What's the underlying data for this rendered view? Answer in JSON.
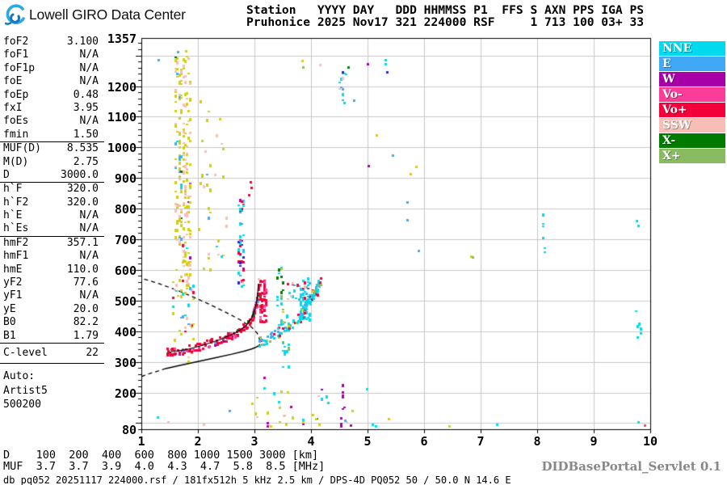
{
  "header": {
    "logo_text": "Lowell GIRO Data Center",
    "station_block": [
      "Station   YYYY DAY   DDD HHMMSS P1  FFS S AXN PPS IGA PS",
      "Pruhonice 2025 Nov17 321 224000 RSF     1 713 100 03+ 33"
    ]
  },
  "params": {
    "groups": [
      {
        "rows": [
          [
            "foF2",
            "3.100"
          ],
          [
            "foF1",
            "N/A"
          ],
          [
            "foF1p",
            "N/A"
          ],
          [
            "foE",
            "N/A"
          ],
          [
            "foEp",
            "0.48"
          ],
          [
            "fxI",
            "3.95"
          ],
          [
            "foEs",
            "N/A"
          ],
          [
            "fmin",
            "1.50"
          ]
        ]
      },
      {
        "rows": [
          [
            "MUF(D)",
            "8.535"
          ],
          [
            "M(D)",
            "2.75"
          ],
          [
            "D",
            "3000.0"
          ]
        ]
      },
      {
        "rows": [
          [
            "h`F",
            "320.0"
          ],
          [
            "h`F2",
            "320.0"
          ],
          [
            "h`E",
            "N/A"
          ],
          [
            "h`Es",
            "N/A"
          ]
        ]
      },
      {
        "rows": [
          [
            "hmF2",
            "357.1"
          ],
          [
            "hmF1",
            "N/A"
          ],
          [
            "hmE",
            "110.0"
          ],
          [
            "yF2",
            "77.6"
          ],
          [
            "yF1",
            "N/A"
          ],
          [
            "yE",
            "20.0"
          ],
          [
            "B0",
            "82.2"
          ],
          [
            "B1",
            "1.79"
          ]
        ]
      },
      {
        "rows": [
          [
            "C-level",
            "22"
          ]
        ],
        "clevel": true
      }
    ],
    "auto_block": [
      "Auto:",
      "Artist5",
      "500200"
    ]
  },
  "legend": [
    {
      "label": "NNE",
      "color": "#00d9ee"
    },
    {
      "label": "E",
      "color": "#41a8f6"
    },
    {
      "label": "W",
      "color": "#a800a8"
    },
    {
      "label": "Vo-",
      "color": "#fb3d99"
    },
    {
      "label": "Vo+",
      "color": "#f3003a"
    },
    {
      "label": "SSW",
      "color": "#f6beb4"
    },
    {
      "label": "X-",
      "color": "#007b00"
    },
    {
      "label": "X+",
      "color": "#89bb60"
    }
  ],
  "footer": {
    "dmuf": [
      "D    100  200  400  600  800 1000 1500 3000 [km]",
      "MUF  3.7  3.7  3.9  4.0  4.3  4.7  5.8  8.5 [MHz]"
    ],
    "status": "db pq052 20251117 224000.rsf / 181fx512h 5 kHz 2.5 km / DPS-4D PQ052 50 / 50.0 N 14.6 E",
    "servlet": "DIDBasePortal_Servlet 0.1"
  },
  "chart_data": {
    "type": "scatter",
    "title": "Pruhonice ionogram 2025 Nov17 321 224000",
    "x_axis": {
      "unit": "MHz",
      "min": 1,
      "max": 10,
      "ticks": [
        1,
        2,
        3,
        4,
        5,
        6,
        7,
        8,
        9,
        10
      ]
    },
    "y_axis": {
      "unit": "km",
      "min": 80,
      "max": 1357,
      "tick_labels": [
        1357,
        1200,
        1100,
        1000,
        900,
        800,
        700,
        600,
        500,
        400,
        300,
        200,
        80
      ],
      "grid_step": 100
    },
    "grid_color": "#c8c8c8",
    "palette": {
      "NNE": "#00d9ee",
      "E": "#41a8f6",
      "W": "#a800a8",
      "Vo-": "#fb3d99",
      "Vo+": "#f3003a",
      "SSW": "#f6beb4",
      "X-": "#007b00",
      "X+": "#89bb60",
      "yellow": "#cfcf10",
      "dkblue": "#2626cc"
    },
    "traces": [
      {
        "name": "O-mode F trace",
        "mix": {
          "Vo+": 0.72,
          "Vo-": 0.14,
          "W": 0.04,
          "X-": 0.05,
          "E": 0.05
        },
        "thickness_km": 26,
        "n": 170,
        "seed": 11,
        "points": [
          [
            1.45,
            332
          ],
          [
            1.6,
            334
          ],
          [
            1.8,
            340
          ],
          [
            2.0,
            349
          ],
          [
            2.2,
            360
          ],
          [
            2.4,
            372
          ],
          [
            2.6,
            388
          ],
          [
            2.75,
            403
          ],
          [
            2.85,
            418
          ],
          [
            2.95,
            443
          ],
          [
            3.0,
            466
          ],
          [
            3.04,
            495
          ],
          [
            3.07,
            530
          ],
          [
            3.08,
            555
          ]
        ]
      },
      {
        "name": "X-mode / oblique trace",
        "mix": {
          "NNE": 0.62,
          "E": 0.12,
          "Vo+": 0.12,
          "X+": 0.08,
          "yellow": 0.06
        },
        "thickness_km": 34,
        "n": 130,
        "seed": 22,
        "points": [
          [
            3.08,
            365
          ],
          [
            3.25,
            380
          ],
          [
            3.45,
            400
          ],
          [
            3.65,
            425
          ],
          [
            3.8,
            452
          ],
          [
            3.9,
            478
          ],
          [
            4.0,
            510
          ],
          [
            4.1,
            540
          ],
          [
            4.17,
            560
          ]
        ]
      }
    ],
    "noise_bands": [
      {
        "f0": 1.6,
        "f1": 1.7,
        "km0": 690,
        "km1": 1295,
        "n": 95,
        "seed": 1,
        "colors": {
          "yellow": 0.5,
          "SSW": 0.2,
          "E": 0.18,
          "NNE": 0.06,
          "X-": 0.06
        }
      },
      {
        "f0": 1.74,
        "f1": 1.85,
        "km0": 540,
        "km1": 1305,
        "n": 120,
        "seed": 2,
        "colors": {
          "yellow": 0.58,
          "SSW": 0.36,
          "W": 0.06
        }
      },
      {
        "f0": 1.55,
        "f1": 1.92,
        "km0": 300,
        "km1": 690,
        "n": 48,
        "seed": 3,
        "colors": {
          "yellow": 0.45,
          "SSW": 0.3,
          "NNE": 0.1,
          "Vo+": 0.1,
          "E": 0.05
        }
      },
      {
        "f0": 2.02,
        "f1": 2.22,
        "km0": 600,
        "km1": 1160,
        "n": 22,
        "seed": 4,
        "colors": {
          "yellow": 0.55,
          "SSW": 0.27,
          "E": 0.18
        }
      },
      {
        "f0": 2.3,
        "f1": 2.5,
        "km0": 640,
        "km1": 1100,
        "n": 13,
        "seed": 5,
        "colors": {
          "yellow": 0.5,
          "SSW": 0.3,
          "NNE": 0.2
        }
      },
      {
        "f0": 2.72,
        "f1": 2.8,
        "km0": 545,
        "km1": 830,
        "n": 50,
        "seed": 6,
        "colors": {
          "Vo+": 0.3,
          "dkblue": 0.2,
          "NNE": 0.25,
          "E": 0.15,
          "W": 0.1
        }
      },
      {
        "f0": 3.1,
        "f1": 3.2,
        "km0": 430,
        "km1": 565,
        "n": 60,
        "seed": 7,
        "colors": {
          "Vo+": 0.8,
          "Vo-": 0.2
        }
      },
      {
        "f0": 3.82,
        "f1": 3.97,
        "km0": 430,
        "km1": 575,
        "n": 48,
        "seed": 8,
        "colors": {
          "NNE": 0.55,
          "Vo+": 0.28,
          "E": 0.17
        }
      },
      {
        "f0": 3.4,
        "f1": 3.5,
        "km0": 330,
        "km1": 620,
        "n": 26,
        "seed": 9,
        "colors": {
          "X-": 0.4,
          "NNE": 0.35,
          "yellow": 0.15,
          "X+": 0.1
        }
      },
      {
        "f0": 3.5,
        "f1": 3.6,
        "km0": 250,
        "km1": 470,
        "n": 18,
        "seed": 10,
        "colors": {
          "NNE": 0.8,
          "X+": 0.2
        }
      },
      {
        "f0": 2.9,
        "f1": 5.2,
        "km0": 88,
        "km1": 215,
        "n": 26,
        "seed": 12,
        "colors": {
          "NNE": 0.32,
          "yellow": 0.3,
          "W": 0.18,
          "X-": 0.1,
          "SSW": 0.1
        }
      },
      {
        "f0": 4.53,
        "f1": 4.58,
        "km0": 90,
        "km1": 245,
        "n": 9,
        "seed": 13,
        "colors": {
          "W": 0.8,
          "Vo+": 0.2
        }
      },
      {
        "f0": 4.5,
        "f1": 4.62,
        "km0": 1145,
        "km1": 1250,
        "n": 13,
        "seed": 14,
        "colors": {
          "NNE": 0.4,
          "E": 0.2,
          "SSW": 0.2,
          "W": 0.2
        }
      },
      {
        "f0": 8.1,
        "f1": 8.17,
        "km0": 650,
        "km1": 790,
        "n": 7,
        "seed": 15,
        "colors": {
          "NNE": 1
        }
      },
      {
        "f0": 9.74,
        "f1": 9.85,
        "km0": 380,
        "km1": 470,
        "n": 7,
        "seed": 16,
        "colors": {
          "NNE": 1
        }
      },
      {
        "f0": 3.55,
        "f1": 4.12,
        "km0": 500,
        "km1": 572,
        "n": 22,
        "seed": 17,
        "colors": {
          "Vo+": 0.5,
          "NNE": 0.3,
          "SSW": 0.2
        }
      }
    ],
    "stray_points": [
      [
        3.84,
        1283,
        "yellow"
      ],
      [
        3.85,
        1262,
        "X+"
      ],
      [
        4.16,
        1270,
        "SSW"
      ],
      [
        4.66,
        1263,
        "X-"
      ],
      [
        5.31,
        1287,
        "NNE"
      ],
      [
        5.31,
        1272,
        "NNE"
      ],
      [
        5.0,
        1272,
        "W"
      ],
      [
        4.56,
        1246,
        "dkblue"
      ],
      [
        5.34,
        1246,
        "dkblue"
      ],
      [
        4.76,
        1155,
        "E"
      ],
      [
        5.16,
        1040,
        "yellow"
      ],
      [
        5.44,
        975,
        "E"
      ],
      [
        5.01,
        940,
        "W"
      ],
      [
        5.86,
        938,
        "yellow"
      ],
      [
        5.76,
        914,
        "yellow"
      ],
      [
        5.7,
        822,
        "E"
      ],
      [
        5.7,
        764,
        "E"
      ],
      [
        5.9,
        664,
        "E"
      ],
      [
        6.83,
        645,
        "yellow"
      ],
      [
        6.86,
        642,
        "X+"
      ],
      [
        9.76,
        762,
        "NNE"
      ],
      [
        9.79,
        744,
        "NNE"
      ],
      [
        2.93,
        888,
        "Vo+"
      ],
      [
        2.94,
        868,
        "Vo+"
      ],
      [
        2.9,
        845,
        "Vo+"
      ],
      [
        2.78,
        560,
        "SSW"
      ],
      [
        3.07,
        572,
        "SSW"
      ],
      [
        1.64,
        1312,
        "E"
      ],
      [
        1.79,
        1316,
        "yellow"
      ],
      [
        1.3,
        1285,
        "E"
      ],
      [
        1.29,
        120,
        "NNE"
      ],
      [
        1.47,
        105,
        "SSW"
      ],
      [
        2.55,
        140,
        "E"
      ],
      [
        3.17,
        250,
        "W"
      ],
      [
        3.17,
        215,
        "NNE"
      ],
      [
        3.43,
        170,
        "NNE"
      ],
      [
        3.47,
        205,
        "yellow"
      ],
      [
        3.44,
        150,
        "yellow"
      ],
      [
        3.51,
        125,
        "SSW"
      ],
      [
        3.86,
        105,
        "yellow"
      ],
      [
        4.14,
        95,
        "yellow"
      ],
      [
        4.6,
        109,
        "E"
      ],
      [
        4.7,
        92,
        "W"
      ],
      [
        5.08,
        95,
        "NNE"
      ],
      [
        5.14,
        90,
        "NNE"
      ],
      [
        4.08,
        115,
        "yellow"
      ],
      [
        4.73,
        140,
        "yellow"
      ],
      [
        5.37,
        115,
        "yellow"
      ],
      [
        7.28,
        95,
        "NNE"
      ],
      [
        9.78,
        104,
        "NNE"
      ],
      [
        9.9,
        92,
        "Vo-"
      ],
      [
        6.44,
        90,
        "yellow"
      ],
      [
        2.1,
        95,
        "SSW"
      ]
    ],
    "profile_lines": {
      "bottomside_solid": [
        [
          1.43,
          278
        ],
        [
          1.7,
          289
        ],
        [
          2.0,
          301
        ],
        [
          2.3,
          313
        ],
        [
          2.6,
          325
        ],
        [
          2.8,
          334
        ],
        [
          2.95,
          342
        ],
        [
          3.02,
          347
        ],
        [
          3.07,
          352
        ],
        [
          3.1,
          357
        ]
      ],
      "topside_dashed": [
        [
          1.05,
          570
        ],
        [
          1.3,
          556
        ],
        [
          1.6,
          536
        ],
        [
          1.9,
          513
        ],
        [
          2.2,
          488
        ],
        [
          2.5,
          461
        ],
        [
          2.75,
          437
        ],
        [
          2.95,
          413
        ],
        [
          3.05,
          393
        ],
        [
          3.09,
          373
        ],
        [
          3.1,
          357
        ]
      ],
      "sub_fmin_dashed": [
        [
          1.0,
          252
        ],
        [
          1.15,
          262
        ],
        [
          1.3,
          270
        ],
        [
          1.43,
          278
        ]
      ],
      "trace_fit": [
        [
          1.5,
          332
        ],
        [
          1.8,
          340
        ],
        [
          2.1,
          355
        ],
        [
          2.4,
          373
        ],
        [
          2.7,
          398
        ],
        [
          2.85,
          418
        ],
        [
          2.95,
          443
        ],
        [
          3.0,
          466
        ],
        [
          3.04,
          495
        ],
        [
          3.06,
          530
        ],
        [
          3.07,
          555
        ]
      ]
    }
  }
}
